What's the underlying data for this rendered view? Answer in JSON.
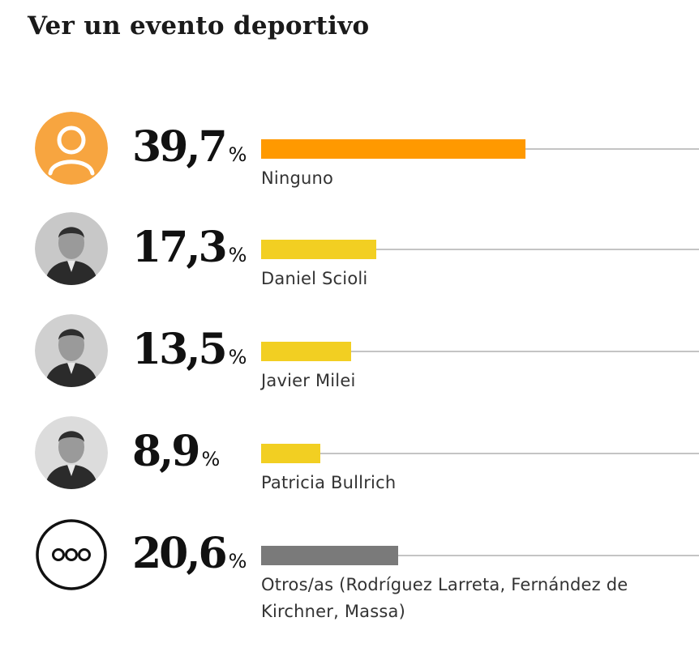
{
  "chart_data": {
    "type": "bar",
    "title": "Ver un evento deportivo",
    "unit": "%",
    "xlim": [
      0,
      100
    ],
    "categories": [
      "Ninguno",
      "Daniel Scioli",
      "Javier Milei",
      "Patricia Bullrich",
      "Otros/as (Rodríguez Larreta, Fernández de Kirchner, Massa)"
    ],
    "values": [
      39.7,
      17.3,
      13.5,
      8.9,
      20.6
    ],
    "value_labels": [
      "39,7",
      "17,3",
      "13,5",
      "8,9",
      "20,6"
    ],
    "colors": [
      "#ff9900",
      "#f2cf22",
      "#f2cf22",
      "#f2cf22",
      "#7a7a7a"
    ],
    "icons": [
      "person-icon",
      "portrait-icon",
      "portrait-icon",
      "portrait-icon",
      "ellipsis-icon"
    ]
  }
}
